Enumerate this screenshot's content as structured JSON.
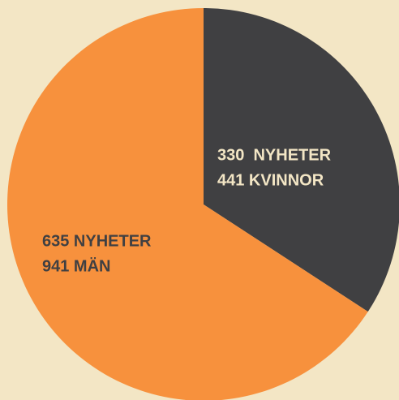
{
  "chart_data": {
    "type": "pie",
    "values": [
      330441,
      635941
    ],
    "value_labels": [
      [
        "330  NYHETER",
        "441 KVINNOR"
      ],
      [
        "635 NYHETER",
        "941 MÄN"
      ]
    ],
    "colors": [
      "#404042",
      "#f7913d"
    ],
    "label_colors": [
      "#f3e6c5",
      "#404042"
    ]
  }
}
